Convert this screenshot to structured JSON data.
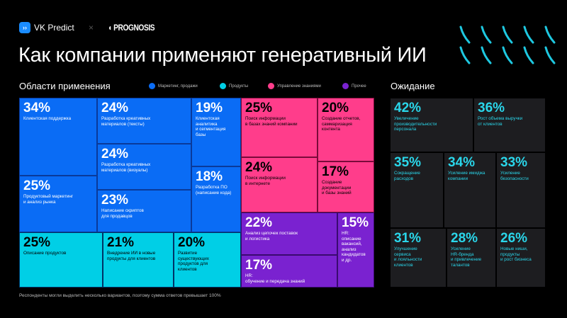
{
  "header": {
    "vk_logo": "VK Predict",
    "separator": "×",
    "partner_logo": "PROGNOSIS",
    "title": "Как компании применяют генеративный ИИ"
  },
  "left": {
    "heading": "Области применения",
    "legend": [
      {
        "label": "Маркетинг, продажи",
        "color": "#0a6cf5"
      },
      {
        "label": "Продукты",
        "color": "#00cfe6"
      },
      {
        "label": "Управление знаниями",
        "color": "#ff3d8b"
      },
      {
        "label": "Прочее",
        "color": "#7a22d0"
      }
    ],
    "tiles": [
      {
        "pct": "34%",
        "label": "Клиентская поддержка",
        "category": "Маркетинг, продажи"
      },
      {
        "pct": "25%",
        "label": "Продуктовый маркетинг\nи анализ рынка",
        "category": "Маркетинг, продажи"
      },
      {
        "pct": "24%",
        "label": "Разработка креативных\nматериалов (тексты)",
        "category": "Маркетинг, продажи"
      },
      {
        "pct": "24%",
        "label": "Разработка креативных\nматериалов (визуалы)",
        "category": "Маркетинг, продажи"
      },
      {
        "pct": "23%",
        "label": "Написание скриптов\nдля продавцов",
        "category": "Маркетинг, продажи"
      },
      {
        "pct": "19%",
        "label": "Клиентская\nаналитика\nи сегментация\nбазы",
        "category": "Маркетинг, продажи"
      },
      {
        "pct": "18%",
        "label": "Разработка ПО\n(написание кода)",
        "category": "Маркетинг, продажи"
      },
      {
        "pct": "25%",
        "label": "Описание продуктов",
        "category": "Продукты"
      },
      {
        "pct": "21%",
        "label": "Внедрение ИИ в новые\nпродукты для клиентов",
        "category": "Продукты"
      },
      {
        "pct": "20%",
        "label": "Развитие\nсуществующих\nпродуктов для\nклиентов",
        "category": "Продукты"
      },
      {
        "pct": "25%",
        "label": "Поиск информации\nв базах знаний компании",
        "category": "Управление знаниями"
      },
      {
        "pct": "20%",
        "label": "Создание отчетов,\nсаммаризация\nконтента",
        "category": "Управление знаниями"
      },
      {
        "pct": "24%",
        "label": "Поиск информации\nв интернете",
        "category": "Управление знаниями"
      },
      {
        "pct": "17%",
        "label": "Создание\nдокументации\nи базы знаний",
        "category": "Управление знаниями"
      },
      {
        "pct": "22%",
        "label": "Анализ цепочек поставок\nи логистика",
        "category": "Прочее"
      },
      {
        "pct": "17%",
        "label": "HR:\nобучение и передача знаний",
        "category": "Прочее"
      },
      {
        "pct": "15%",
        "label": "HR:\nописание\nвакансий,\nанализ\nкандидатов\nи др.",
        "category": "Прочее"
      }
    ]
  },
  "right": {
    "heading": "Ожидание",
    "tiles": [
      {
        "pct": "42%",
        "label": "Увеличение\nпроизводительности\nперсонала"
      },
      {
        "pct": "36%",
        "label": "Рост объема выручки\nот клиентов"
      },
      {
        "pct": "35%",
        "label": "Сокращение\nрасходов"
      },
      {
        "pct": "34%",
        "label": "Усиление имиджа\nкомпании"
      },
      {
        "pct": "33%",
        "label": "Усиление\nбезопасности"
      },
      {
        "pct": "31%",
        "label": "Улучшение\nсервиса\nи лояльности\nклиентов"
      },
      {
        "pct": "28%",
        "label": "Усиление\nHR-бренда\nи привлечение\nталантов"
      },
      {
        "pct": "26%",
        "label": "Новые ниши,\nпродукты\nи рост бизнеса"
      }
    ]
  },
  "footnote": "Респонденты могли выделить несколько вариантов, поэтому сумма ответов превышает 100%",
  "chart_data": {
    "type": "treemap",
    "series": [
      {
        "name": "Области применения",
        "categories": [
          "Клиентская поддержка",
          "Продуктовый маркетинг и анализ рынка",
          "Разработка креативных материалов (тексты)",
          "Разработка креативных материалов (визуалы)",
          "Написание скриптов для продавцов",
          "Клиентская аналитика и сегментация базы",
          "Разработка ПО (написание кода)",
          "Описание продуктов",
          "Внедрение ИИ в новые продукты для клиентов",
          "Развитие существующих продуктов для клиентов",
          "Поиск информации в базах знаний компании",
          "Создание отчетов, саммаризация контента",
          "Поиск информации в интернете",
          "Создание документации и базы знаний",
          "Анализ цепочек поставок и логистика",
          "HR: обучение и передача знаний",
          "HR: описание вакансий, анализ кандидатов и др."
        ],
        "values": [
          34,
          25,
          24,
          24,
          23,
          19,
          18,
          25,
          21,
          20,
          25,
          20,
          24,
          17,
          22,
          17,
          15
        ]
      },
      {
        "name": "Ожидание",
        "categories": [
          "Увеличение производительности персонала",
          "Рост объема выручки от клиентов",
          "Сокращение расходов",
          "Усиление имиджа компании",
          "Усиление безопасности",
          "Улучшение сервиса и лояльности клиентов",
          "Усиление HR-бренда и привлечение талантов",
          "Новые ниши, продукты и рост бизнеса"
        ],
        "values": [
          42,
          36,
          35,
          34,
          33,
          31,
          28,
          26
        ]
      }
    ]
  }
}
